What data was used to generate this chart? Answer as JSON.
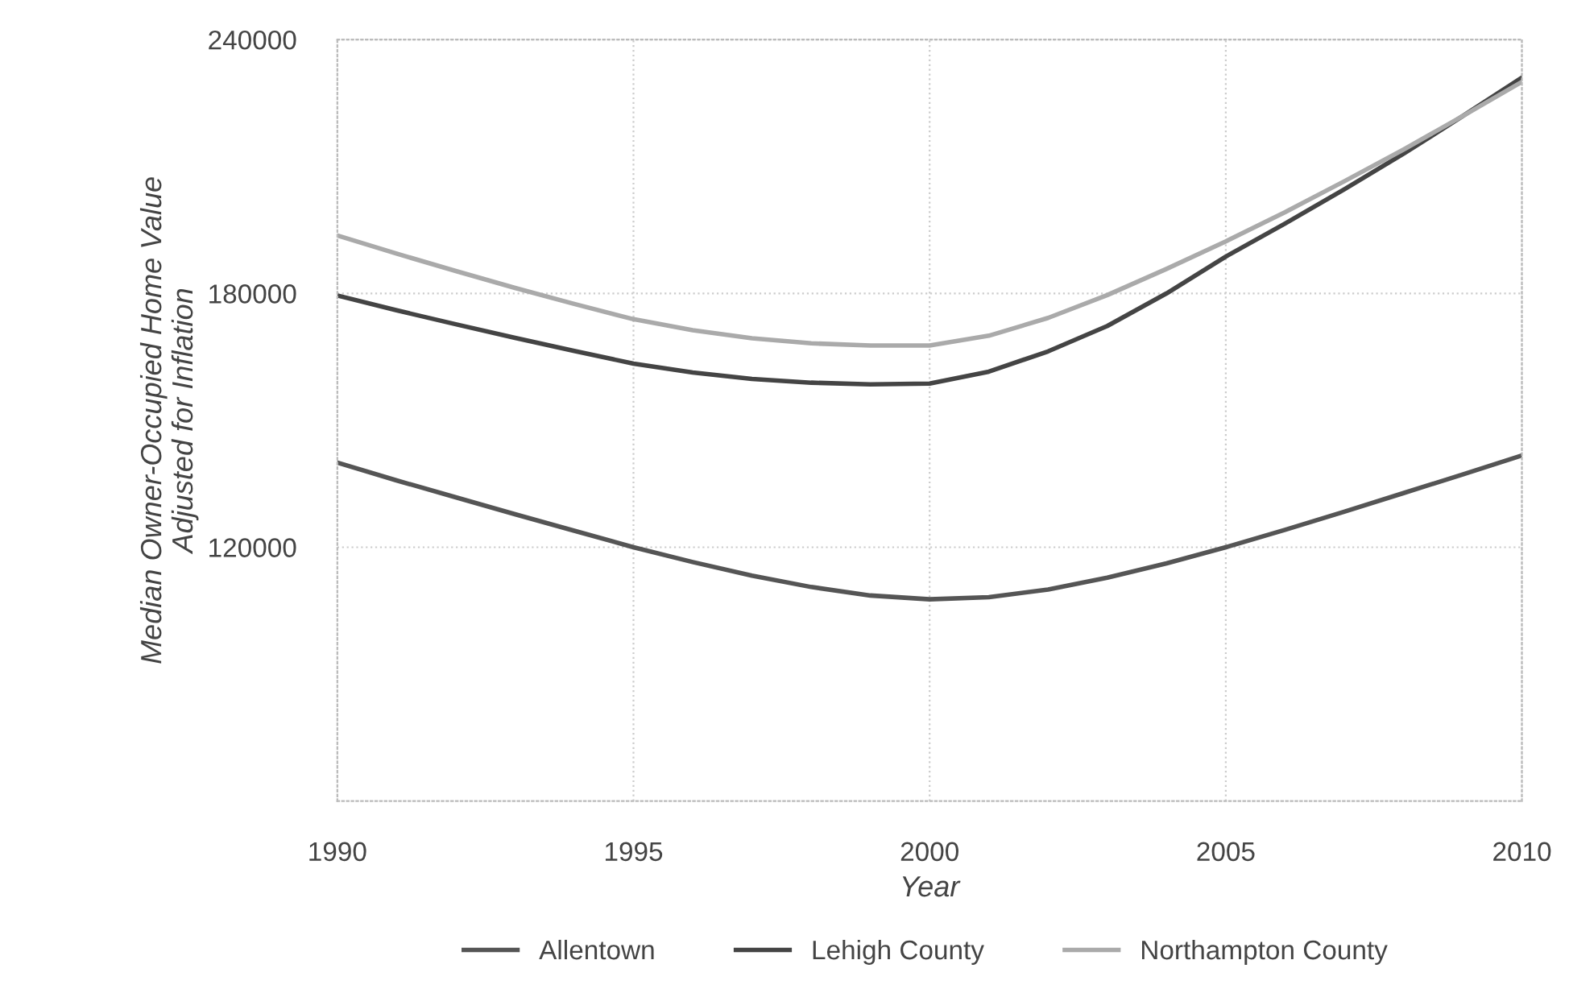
{
  "chart_data": {
    "type": "line",
    "xlabel": "Year",
    "ylabel": "Median Owner-Occupied Home Value\nAdjusted for Inflation",
    "x": [
      1990,
      1991,
      1992,
      1993,
      1994,
      1995,
      1996,
      1997,
      1998,
      1999,
      2000,
      2001,
      2002,
      2003,
      2004,
      2005,
      2006,
      2007,
      2008,
      2009,
      2010
    ],
    "series": [
      {
        "name": "Allentown",
        "color": "#555555",
        "values": [
          140000,
          135800,
          131800,
          127800,
          123900,
          120000,
          116500,
          113300,
          110600,
          108600,
          107700,
          108200,
          110000,
          112800,
          116200,
          120000,
          124100,
          128400,
          132800,
          137200,
          141700
        ]
      },
      {
        "name": "Lehigh County",
        "color": "#444444",
        "values": [
          179500,
          176000,
          172700,
          169500,
          166400,
          163400,
          161300,
          159800,
          158900,
          158500,
          158700,
          161500,
          166300,
          172300,
          180000,
          188700,
          196500,
          204600,
          213000,
          221900,
          231000
        ]
      },
      {
        "name": "Northampton County",
        "color": "#aaaaaa",
        "values": [
          193700,
          189400,
          185300,
          181300,
          177500,
          173900,
          171300,
          169400,
          168200,
          167700,
          167700,
          170000,
          174200,
          179600,
          185800,
          192300,
          199200,
          206500,
          214000,
          221900,
          230000
        ]
      }
    ],
    "xlim": [
      1990,
      2010
    ],
    "xticks": [
      1990,
      1995,
      2000,
      2005,
      2010
    ],
    "ylim": [
      60000,
      240000
    ],
    "yticks": [
      120000,
      180000,
      240000
    ],
    "grid": true,
    "legend": "bottom",
    "marker": "none",
    "line_style": "solid"
  }
}
